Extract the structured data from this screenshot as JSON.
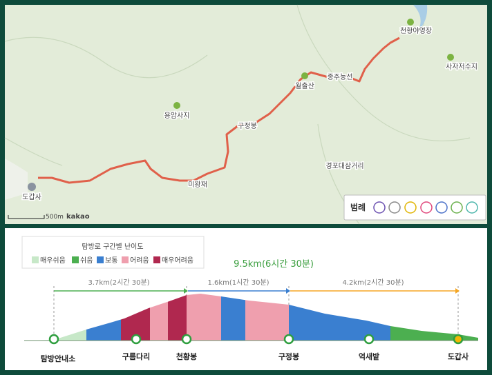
{
  "map": {
    "places": [
      "천황야영장",
      "사자저수지",
      "월출산",
      "종주능선",
      "용암사지",
      "구정봉",
      "경포대삼거리",
      "미왕재",
      "도갑사"
    ],
    "scale": "500m",
    "provider": "kakao",
    "legend_title": "범례"
  },
  "profile": {
    "legend_title": "탐방로 구간별 난이도",
    "legend": [
      "매우쉬움",
      "쉬움",
      "보통",
      "어려움",
      "매우어려움"
    ],
    "total": "9.5km(6시간 30분)",
    "sections": [
      "3.7km(2시간 30분)",
      "1.6km(1시간 30분)",
      "4.2km(2시간 30분)"
    ],
    "points": [
      "탐방안내소",
      "구름다리",
      "천황봉",
      "구정봉",
      "억새밭",
      "도갑사"
    ]
  }
}
